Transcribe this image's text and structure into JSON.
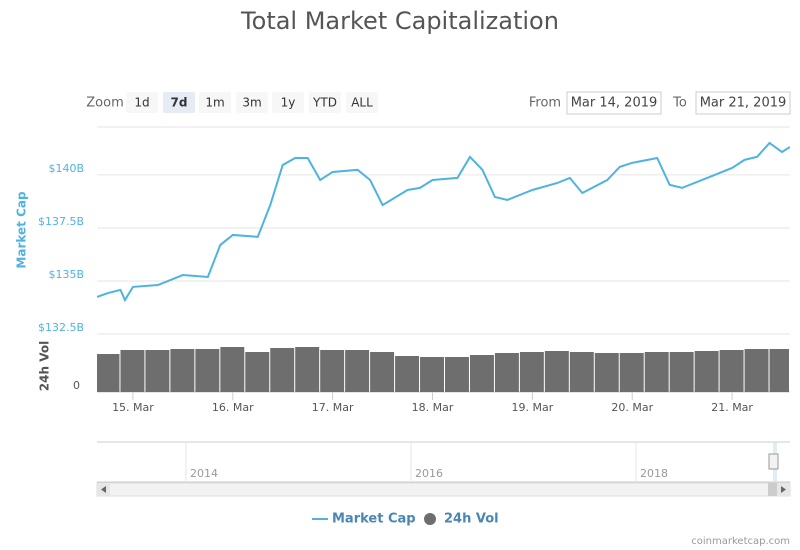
{
  "chart_data": {
    "type": "line",
    "title": "Total Market Capitalization",
    "y_label": "Market Cap",
    "y2_label": "24h Vol",
    "series": [
      {
        "name": "Market Cap",
        "color": "#4fb3e0",
        "x": [
          14.64,
          14.75,
          14.875,
          14.92,
          15.0,
          15.25,
          15.5,
          15.75,
          15.875,
          16.0,
          16.25,
          16.375,
          16.5,
          16.625,
          16.75,
          16.875,
          17.0,
          17.25,
          17.375,
          17.5,
          17.75,
          17.875,
          18.0,
          18.25,
          18.375,
          18.5,
          18.625,
          18.75,
          19.0,
          19.25,
          19.375,
          19.5,
          19.75,
          19.875,
          20.0,
          20.25,
          20.375,
          20.5,
          20.75,
          21.0,
          21.125,
          21.25,
          21.375,
          21.5,
          21.58
        ],
        "values": [
          134.25,
          134.43,
          134.58,
          134.1,
          134.72,
          134.81,
          135.28,
          135.19,
          136.7,
          137.17,
          137.08,
          138.58,
          140.47,
          140.8,
          140.8,
          139.76,
          140.14,
          140.24,
          139.76,
          138.58,
          139.29,
          139.39,
          139.76,
          139.86,
          140.85,
          140.24,
          138.96,
          138.82,
          139.29,
          139.62,
          139.86,
          139.15,
          139.76,
          140.38,
          140.57,
          140.8,
          139.53,
          139.39,
          139.86,
          140.33,
          140.71,
          140.85,
          141.51,
          141.08,
          141.32
        ]
      },
      {
        "name": "24h Vol",
        "color": "#6e6e6e",
        "axis": "y2",
        "x": [
          14.625,
          14.875,
          15.125,
          15.375,
          15.625,
          15.875,
          16.125,
          16.375,
          16.625,
          16.875,
          17.125,
          17.375,
          17.625,
          17.875,
          18.125,
          18.375,
          18.625,
          18.875,
          19.125,
          19.375,
          19.625,
          19.875,
          20.125,
          20.375,
          20.625,
          20.875,
          21.125,
          21.375
        ],
        "values": [
          38,
          42,
          42,
          43,
          43,
          45,
          40,
          44,
          45,
          42,
          42,
          40,
          36,
          35,
          35,
          37,
          39,
          40,
          41,
          40,
          39,
          39,
          40,
          40,
          41,
          42,
          43,
          43
        ]
      }
    ],
    "xlim": [
      14.64,
      21.58
    ],
    "xticks": [
      {
        "value": 15,
        "label": "15. Mar"
      },
      {
        "value": 16,
        "label": "16. Mar"
      },
      {
        "value": 17,
        "label": "17. Mar"
      },
      {
        "value": 18,
        "label": "18. Mar"
      },
      {
        "value": 19,
        "label": "19. Mar"
      },
      {
        "value": 20,
        "label": "20. Mar"
      },
      {
        "value": 21,
        "label": "21. Mar"
      }
    ],
    "ylim": [
      132.5,
      142.26
    ],
    "yticks": [
      {
        "value": 132.5,
        "label": "$132.5B"
      },
      {
        "value": 135,
        "label": "$135B"
      },
      {
        "value": 137.5,
        "label": "$137.5B"
      },
      {
        "value": 140,
        "label": "$140B"
      }
    ],
    "y2lim": [
      0,
      52
    ],
    "y2ticks": [
      0
    ],
    "grid": true
  },
  "controls": {
    "zoom_label": "Zoom",
    "buttons": [
      "1d",
      "7d",
      "1m",
      "3m",
      "1y",
      "YTD",
      "ALL"
    ],
    "selected": "7d",
    "from_label": "From",
    "from": "Mar 14, 2019",
    "to_label": "To",
    "to": "Mar 21, 2019"
  },
  "navigator": {
    "labels": [
      "2014",
      "2016",
      "2018"
    ]
  },
  "credit": "coinmarketcap.com"
}
